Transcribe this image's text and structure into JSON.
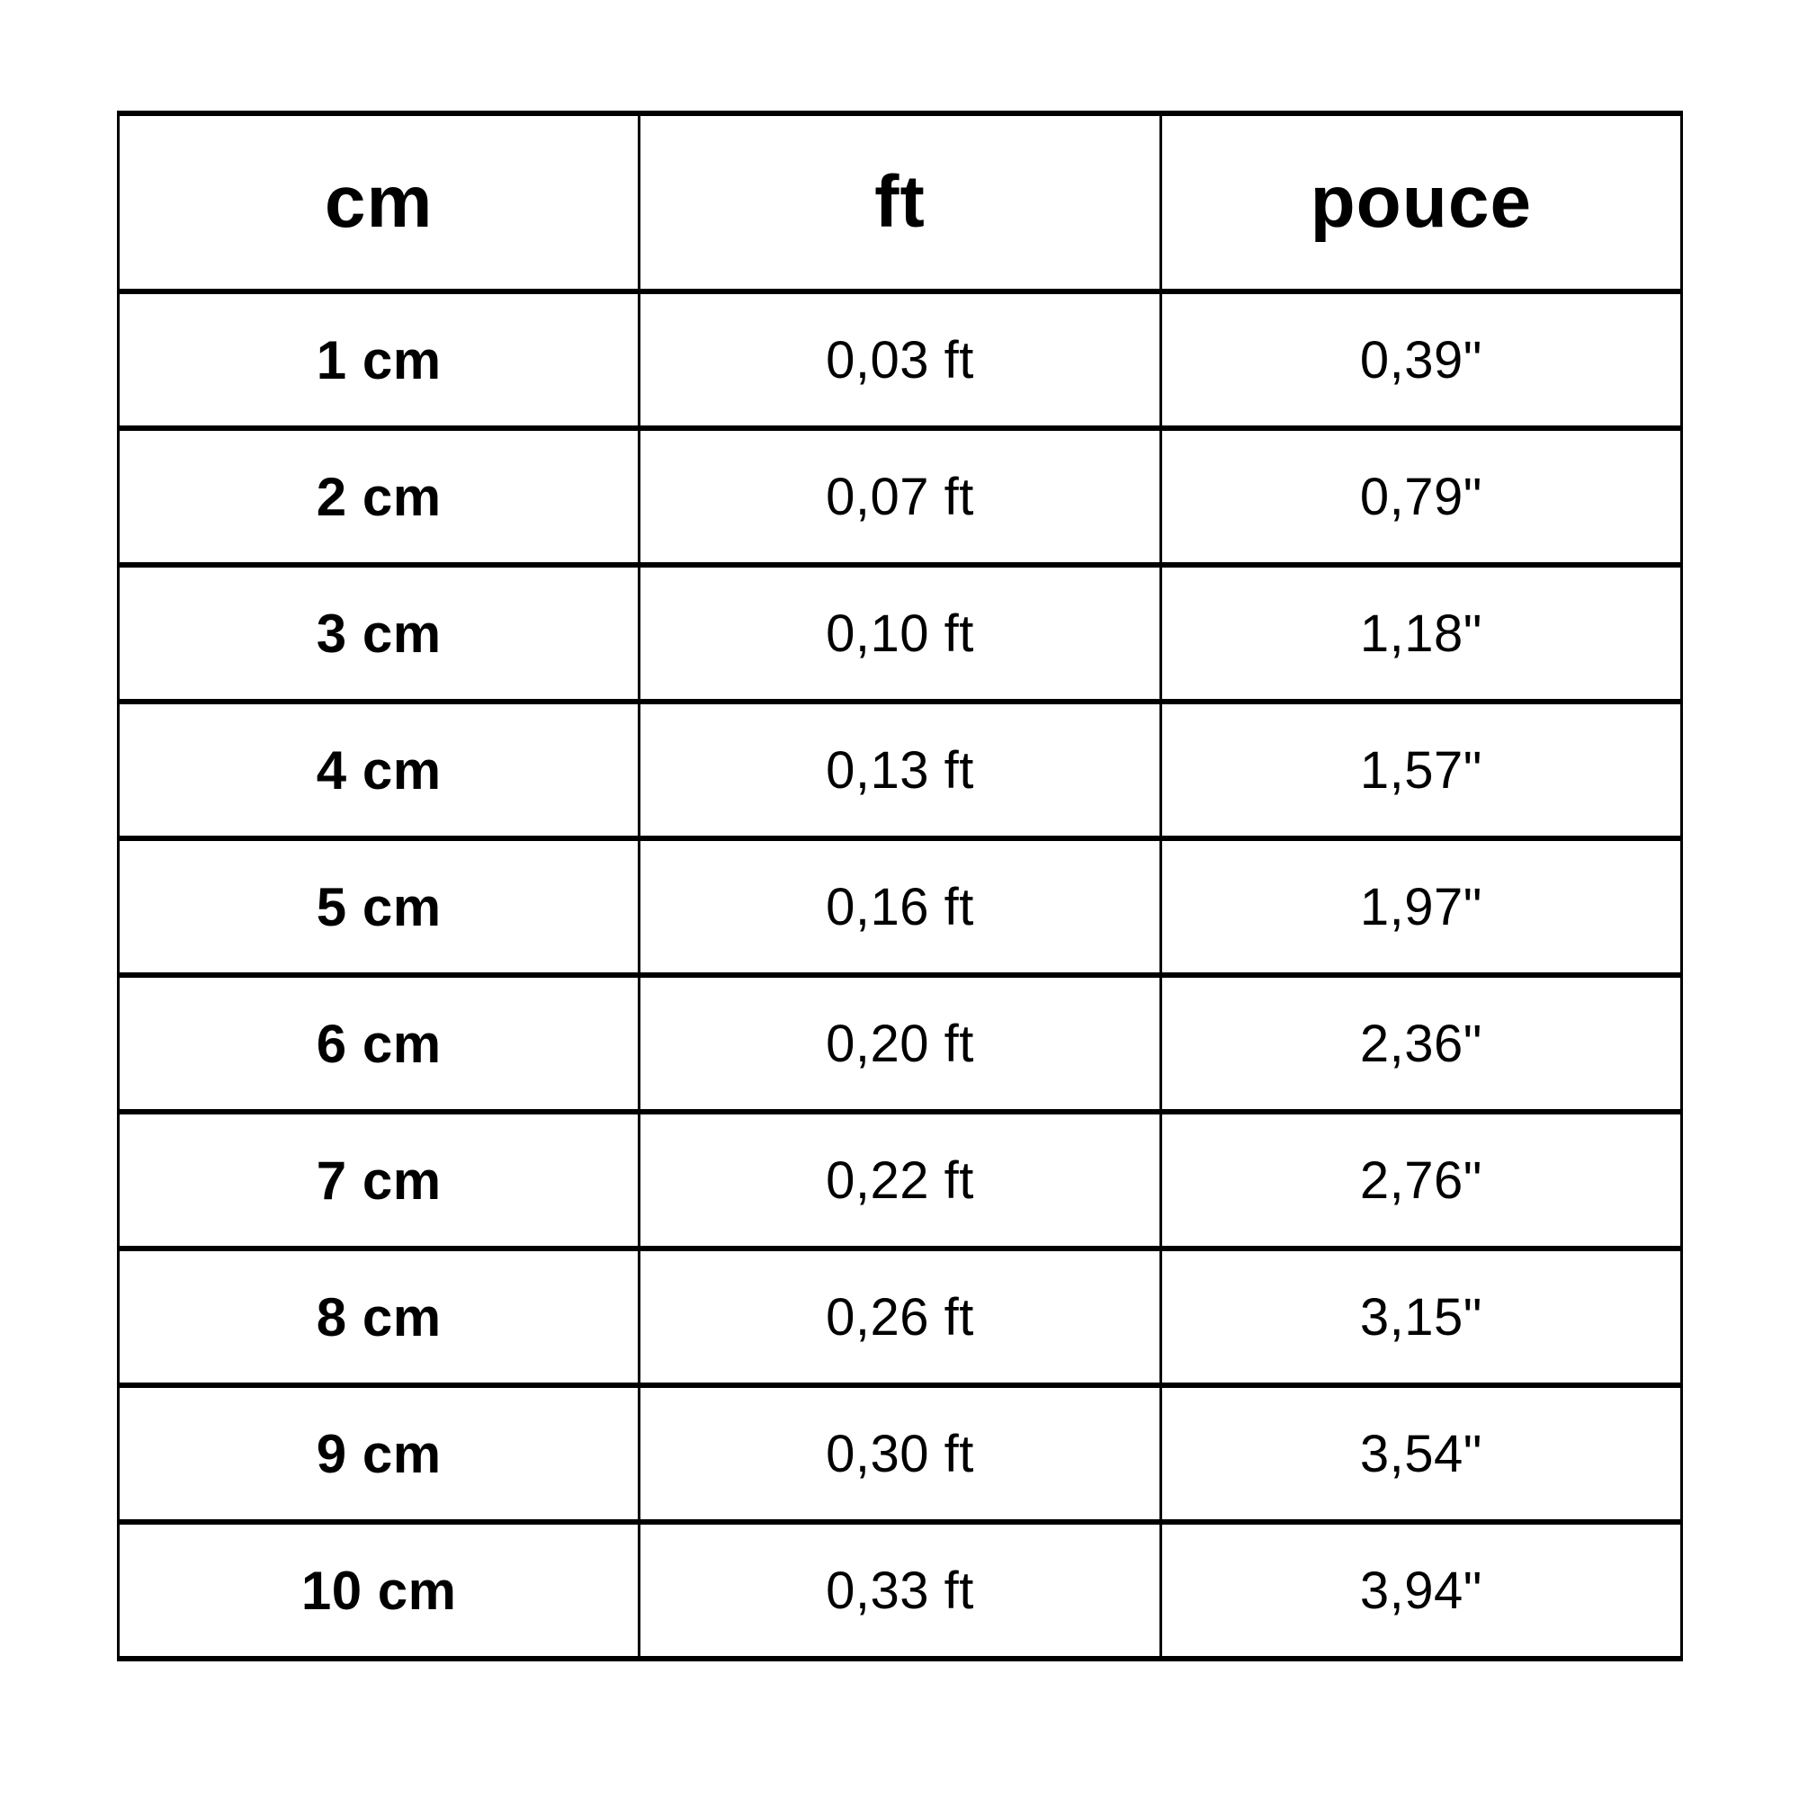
{
  "page": {
    "background_color": "#ffffff",
    "text_color": "#000000",
    "border_color": "#000000"
  },
  "chart_data": {
    "type": "table",
    "title": "",
    "columns": [
      "cm",
      "ft",
      "pouce"
    ],
    "rows": [
      [
        "1 cm",
        "0,03 ft",
        "0,39\""
      ],
      [
        "2 cm",
        "0,07 ft",
        "0,79\""
      ],
      [
        "3 cm",
        "0,10 ft",
        "1,18\""
      ],
      [
        "4 cm",
        "0,13 ft",
        "1,57\""
      ],
      [
        "5 cm",
        "0,16 ft",
        "1,97\""
      ],
      [
        "6 cm",
        "0,20 ft",
        "2,36\""
      ],
      [
        "7 cm",
        "0,22 ft",
        "2,76\""
      ],
      [
        "8 cm",
        "0,26 ft",
        "3,15\""
      ],
      [
        "9 cm",
        "0,30 ft",
        "3,54\""
      ],
      [
        "10 cm",
        "0,33 ft",
        "3,94\""
      ]
    ],
    "numeric": {
      "cm": [
        1,
        2,
        3,
        4,
        5,
        6,
        7,
        8,
        9,
        10
      ],
      "ft": [
        0.03,
        0.07,
        0.1,
        0.13,
        0.16,
        0.2,
        0.22,
        0.26,
        0.3,
        0.33
      ],
      "pouce": [
        0.39,
        0.79,
        1.18,
        1.57,
        1.97,
        2.36,
        2.76,
        3.15,
        3.54,
        3.94
      ]
    },
    "layout": {
      "grid": true,
      "decimal_separator": ",",
      "first_column_bold": true
    }
  }
}
